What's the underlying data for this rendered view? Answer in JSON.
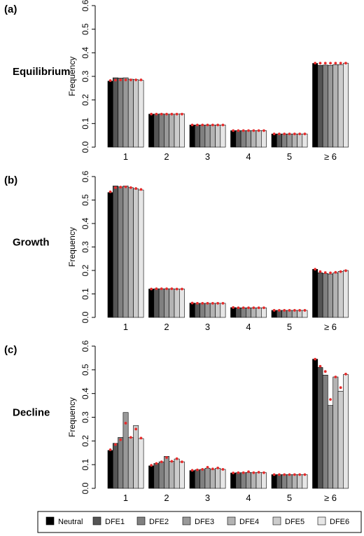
{
  "palette": [
    "#000000",
    "#555555",
    "#808080",
    "#999999",
    "#b3b3b3",
    "#cccccc",
    "#e6e6e6"
  ],
  "marker_color": "#e52b2b",
  "legend": {
    "entries": [
      "Neutral",
      "DFE1",
      "DFE2",
      "DFE3",
      "DFE4",
      "DFE5",
      "DFE6"
    ]
  },
  "chart_data": [
    {
      "type": "bar",
      "panel_label": "(a)",
      "title": "Equilibrium",
      "ylabel": "Frequency",
      "categories": [
        "1",
        "2",
        "3",
        "4",
        "5",
        "≥ 6"
      ],
      "ylim": [
        0,
        0.6
      ],
      "yticks": [
        "0.0",
        "0.1",
        "0.2",
        "0.3",
        "0.4",
        "0.5",
        "0.6"
      ],
      "series": [
        {
          "name": "Neutral",
          "values": [
            0.28,
            0.14,
            0.094,
            0.07,
            0.056,
            0.355
          ]
        },
        {
          "name": "DFE1",
          "values": [
            0.294,
            0.14,
            0.094,
            0.07,
            0.056,
            0.347
          ]
        },
        {
          "name": "DFE2",
          "values": [
            0.293,
            0.141,
            0.094,
            0.07,
            0.056,
            0.348
          ]
        },
        {
          "name": "DFE3",
          "values": [
            0.294,
            0.14,
            0.094,
            0.07,
            0.056,
            0.347
          ]
        },
        {
          "name": "DFE4",
          "values": [
            0.288,
            0.14,
            0.094,
            0.07,
            0.056,
            0.35
          ]
        },
        {
          "name": "DFE5",
          "values": [
            0.286,
            0.14,
            0.094,
            0.07,
            0.056,
            0.35
          ]
        },
        {
          "name": "DFE6",
          "values": [
            0.283,
            0.141,
            0.094,
            0.07,
            0.056,
            0.356
          ]
        }
      ],
      "expected": [
        [
          0.282,
          0.14,
          0.094,
          0.07,
          0.056,
          0.356
        ],
        [
          0.284,
          0.14,
          0.094,
          0.07,
          0.056,
          0.356
        ],
        [
          0.285,
          0.14,
          0.094,
          0.07,
          0.056,
          0.356
        ],
        [
          0.285,
          0.14,
          0.094,
          0.07,
          0.056,
          0.356
        ],
        [
          0.285,
          0.14,
          0.094,
          0.07,
          0.056,
          0.356
        ],
        [
          0.285,
          0.14,
          0.094,
          0.07,
          0.056,
          0.356
        ],
        [
          0.285,
          0.14,
          0.094,
          0.07,
          0.056,
          0.356
        ]
      ]
    },
    {
      "type": "bar",
      "panel_label": "(b)",
      "title": "Growth",
      "ylabel": "Frequency",
      "categories": [
        "1",
        "2",
        "3",
        "4",
        "5",
        "≥ 6"
      ],
      "ylim": [
        0,
        0.6
      ],
      "yticks": [
        "0.0",
        "0.1",
        "0.2",
        "0.3",
        "0.4",
        "0.5",
        "0.6"
      ],
      "series": [
        {
          "name": "Neutral",
          "values": [
            0.532,
            0.121,
            0.061,
            0.042,
            0.03,
            0.205
          ]
        },
        {
          "name": "DFE1",
          "values": [
            0.56,
            0.122,
            0.06,
            0.041,
            0.03,
            0.19
          ]
        },
        {
          "name": "DFE2",
          "values": [
            0.556,
            0.122,
            0.06,
            0.041,
            0.03,
            0.187
          ]
        },
        {
          "name": "DFE3",
          "values": [
            0.56,
            0.122,
            0.06,
            0.041,
            0.03,
            0.185
          ]
        },
        {
          "name": "DFE4",
          "values": [
            0.553,
            0.122,
            0.06,
            0.041,
            0.03,
            0.19
          ]
        },
        {
          "name": "DFE5",
          "values": [
            0.548,
            0.121,
            0.06,
            0.041,
            0.03,
            0.196
          ]
        },
        {
          "name": "DFE6",
          "values": [
            0.543,
            0.121,
            0.06,
            0.041,
            0.03,
            0.2
          ]
        }
      ],
      "expected": [
        [
          0.535,
          0.121,
          0.061,
          0.042,
          0.03,
          0.205
        ],
        [
          0.553,
          0.122,
          0.06,
          0.041,
          0.03,
          0.195
        ],
        [
          0.555,
          0.122,
          0.06,
          0.041,
          0.03,
          0.191
        ],
        [
          0.556,
          0.122,
          0.06,
          0.041,
          0.03,
          0.19
        ],
        [
          0.553,
          0.122,
          0.06,
          0.041,
          0.03,
          0.192
        ],
        [
          0.549,
          0.121,
          0.06,
          0.041,
          0.03,
          0.195
        ],
        [
          0.545,
          0.121,
          0.06,
          0.041,
          0.03,
          0.199
        ]
      ]
    },
    {
      "type": "bar",
      "panel_label": "(c)",
      "title": "Decline",
      "ylabel": "Frequency",
      "categories": [
        "1",
        "2",
        "3",
        "4",
        "5",
        "≥ 6"
      ],
      "ylim": [
        0,
        0.6
      ],
      "yticks": [
        "0.0",
        "0.1",
        "0.2",
        "0.3",
        "0.4",
        "0.5",
        "0.6"
      ],
      "series": [
        {
          "name": "Neutral",
          "values": [
            0.16,
            0.095,
            0.075,
            0.065,
            0.058,
            0.545
          ]
        },
        {
          "name": "DFE1",
          "values": [
            0.19,
            0.105,
            0.078,
            0.066,
            0.058,
            0.51
          ]
        },
        {
          "name": "DFE2",
          "values": [
            0.215,
            0.112,
            0.08,
            0.066,
            0.058,
            0.478
          ]
        },
        {
          "name": "DFE3",
          "values": [
            0.32,
            0.135,
            0.085,
            0.067,
            0.058,
            0.35
          ]
        },
        {
          "name": "DFE4",
          "values": [
            0.215,
            0.114,
            0.08,
            0.066,
            0.058,
            0.47
          ]
        },
        {
          "name": "DFE5",
          "values": [
            0.265,
            0.124,
            0.085,
            0.067,
            0.058,
            0.41
          ]
        },
        {
          "name": "DFE6",
          "values": [
            0.21,
            0.112,
            0.08,
            0.066,
            0.058,
            0.48
          ]
        }
      ],
      "expected": [
        [
          0.163,
          0.097,
          0.076,
          0.065,
          0.058,
          0.545
        ],
        [
          0.185,
          0.105,
          0.078,
          0.066,
          0.058,
          0.515
        ],
        [
          0.205,
          0.112,
          0.08,
          0.066,
          0.058,
          0.493
        ],
        [
          0.275,
          0.13,
          0.089,
          0.07,
          0.058,
          0.375
        ],
        [
          0.215,
          0.114,
          0.082,
          0.066,
          0.058,
          0.47
        ],
        [
          0.25,
          0.125,
          0.086,
          0.068,
          0.058,
          0.425
        ],
        [
          0.212,
          0.112,
          0.08,
          0.066,
          0.058,
          0.482
        ]
      ]
    }
  ]
}
